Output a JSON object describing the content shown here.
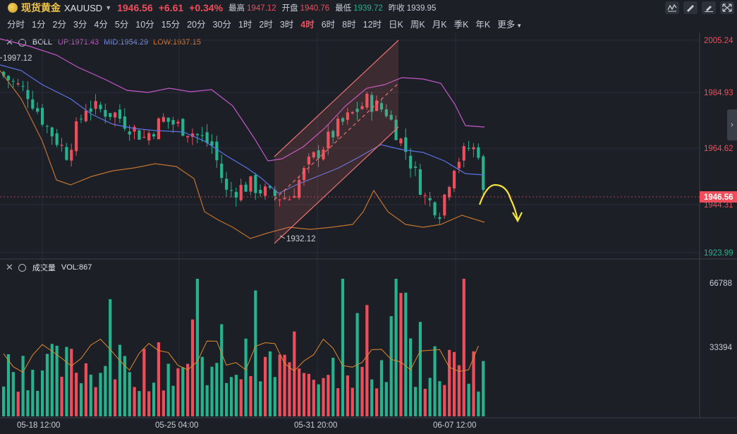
{
  "header": {
    "name": "现货黄金",
    "code": "XAUUSD",
    "last": "1946.56",
    "change": "+6.61",
    "change_pct": "+0.34%",
    "high_label": "最高",
    "high": "1947.12",
    "open_label": "开盘",
    "open": "1940.76",
    "low_label": "最低",
    "low": "1939.72",
    "prev_label": "昨收",
    "prev": "1939.95"
  },
  "periods": [
    "分时",
    "1分",
    "2分",
    "3分",
    "4分",
    "5分",
    "10分",
    "15分",
    "20分",
    "30分",
    "1时",
    "2时",
    "3时",
    "4时",
    "6时",
    "8时",
    "12时",
    "日K",
    "周K",
    "月K",
    "季K",
    "年K"
  ],
  "more_label": "更多",
  "active_period": "4时",
  "boll": {
    "name": "BOLL",
    "up": "UP:1971.43",
    "mid": "MID:1954.29",
    "low": "LOW:1937.15",
    "colors": {
      "up": "#c457c9",
      "mid": "#5b73e6",
      "low": "#c0722f"
    }
  },
  "vol": {
    "name": "成交量",
    "value": "VOL:867"
  },
  "price_axis": [
    "2005.24",
    "1984.93",
    "1964.62",
    "1944.31",
    "1923.99"
  ],
  "current_price_tag": "1946.56",
  "volume_axis": [
    "66788",
    "33394"
  ],
  "time_axis": [
    "05-18 12:00",
    "05-25 04:00",
    "05-31 20:00",
    "06-07 12:00"
  ],
  "annotations": {
    "high_mark": "1997.12",
    "low_mark": "1932.12"
  },
  "colors": {
    "up": "#ee4e5b",
    "down": "#26b28d",
    "bg": "#1c1f26",
    "channel": "#e8706f",
    "arrow": "#f7e43a"
  }
}
